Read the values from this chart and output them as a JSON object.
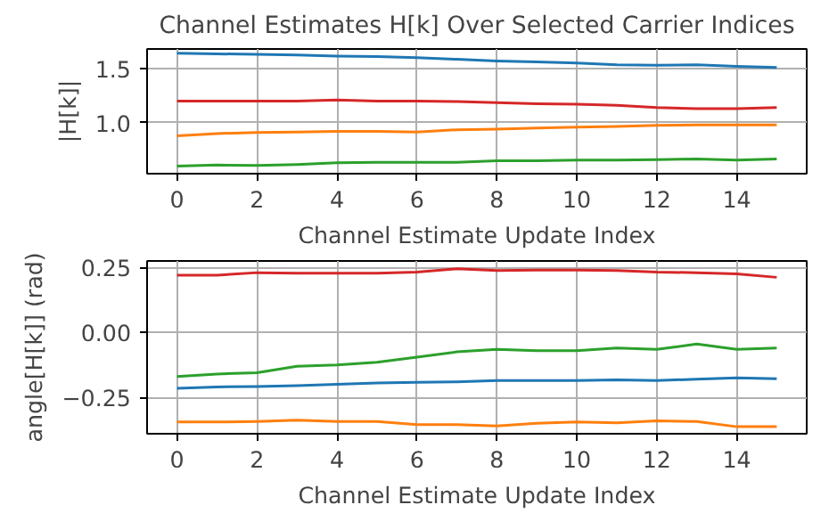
{
  "chart_data": [
    {
      "type": "line",
      "title": "Channel Estimates H[k] Over Selected Carrier Indices",
      "xlabel": "Channel Estimate Update Index",
      "ylabel": "|H[k]|",
      "x": [
        0,
        1,
        2,
        3,
        4,
        5,
        6,
        7,
        8,
        9,
        10,
        11,
        12,
        13,
        14,
        15
      ],
      "xlim": [
        -0.75,
        15.75
      ],
      "xticks": [
        0,
        2,
        4,
        6,
        8,
        10,
        12,
        14
      ],
      "ylim": [
        0.53,
        1.68
      ],
      "yticks": [
        {
          "value": 1.0,
          "label": "1.0"
        },
        {
          "value": 1.5,
          "label": "1.5"
        }
      ],
      "grid": true,
      "series": [
        {
          "color": "#1f77b4",
          "values": [
            1.64,
            1.635,
            1.63,
            1.625,
            1.615,
            1.61,
            1.6,
            1.585,
            1.57,
            1.56,
            1.55,
            1.535,
            1.53,
            1.535,
            1.52,
            1.51
          ]
        },
        {
          "color": "#ff7f0e",
          "values": [
            0.88,
            0.9,
            0.91,
            0.915,
            0.92,
            0.92,
            0.915,
            0.935,
            0.94,
            0.95,
            0.96,
            0.965,
            0.975,
            0.98,
            0.98,
            0.98
          ]
        },
        {
          "color": "#2ca02c",
          "values": [
            0.6,
            0.61,
            0.605,
            0.615,
            0.63,
            0.635,
            0.635,
            0.635,
            0.65,
            0.65,
            0.655,
            0.655,
            0.66,
            0.665,
            0.655,
            0.665
          ]
        },
        {
          "color": "#d62728",
          "values": [
            1.2,
            1.2,
            1.2,
            1.2,
            1.21,
            1.2,
            1.2,
            1.195,
            1.185,
            1.175,
            1.17,
            1.16,
            1.14,
            1.13,
            1.13,
            1.14
          ]
        }
      ]
    },
    {
      "type": "line",
      "xlabel": "Channel Estimate Update Index",
      "ylabel": "angle[H[k]] (rad)",
      "x": [
        0,
        1,
        2,
        3,
        4,
        5,
        6,
        7,
        8,
        9,
        10,
        11,
        12,
        13,
        14,
        15
      ],
      "xlim": [
        -0.75,
        15.75
      ],
      "xticks": [
        0,
        2,
        4,
        6,
        8,
        10,
        12,
        14
      ],
      "ylim": [
        -0.39,
        0.275
      ],
      "yticks": [
        {
          "value": -0.25,
          "label": "−0.25"
        },
        {
          "value": 0.0,
          "label": "0.00"
        },
        {
          "value": 0.25,
          "label": "0.25"
        }
      ],
      "grid": true,
      "series": [
        {
          "color": "#1f77b4",
          "values": [
            -0.215,
            -0.21,
            -0.208,
            -0.205,
            -0.2,
            -0.195,
            -0.192,
            -0.19,
            -0.185,
            -0.185,
            -0.185,
            -0.183,
            -0.185,
            -0.18,
            -0.175,
            -0.178
          ]
        },
        {
          "color": "#ff7f0e",
          "values": [
            -0.345,
            -0.345,
            -0.343,
            -0.338,
            -0.343,
            -0.343,
            -0.355,
            -0.355,
            -0.36,
            -0.35,
            -0.345,
            -0.348,
            -0.34,
            -0.343,
            -0.363,
            -0.363
          ]
        },
        {
          "color": "#2ca02c",
          "values": [
            -0.17,
            -0.16,
            -0.155,
            -0.13,
            -0.125,
            -0.115,
            -0.095,
            -0.075,
            -0.065,
            -0.07,
            -0.07,
            -0.06,
            -0.065,
            -0.045,
            -0.065,
            -0.06
          ]
        },
        {
          "color": "#d62728",
          "values": [
            0.22,
            0.22,
            0.23,
            0.228,
            0.228,
            0.228,
            0.232,
            0.245,
            0.238,
            0.24,
            0.24,
            0.238,
            0.232,
            0.23,
            0.225,
            0.212
          ]
        }
      ]
    }
  ]
}
